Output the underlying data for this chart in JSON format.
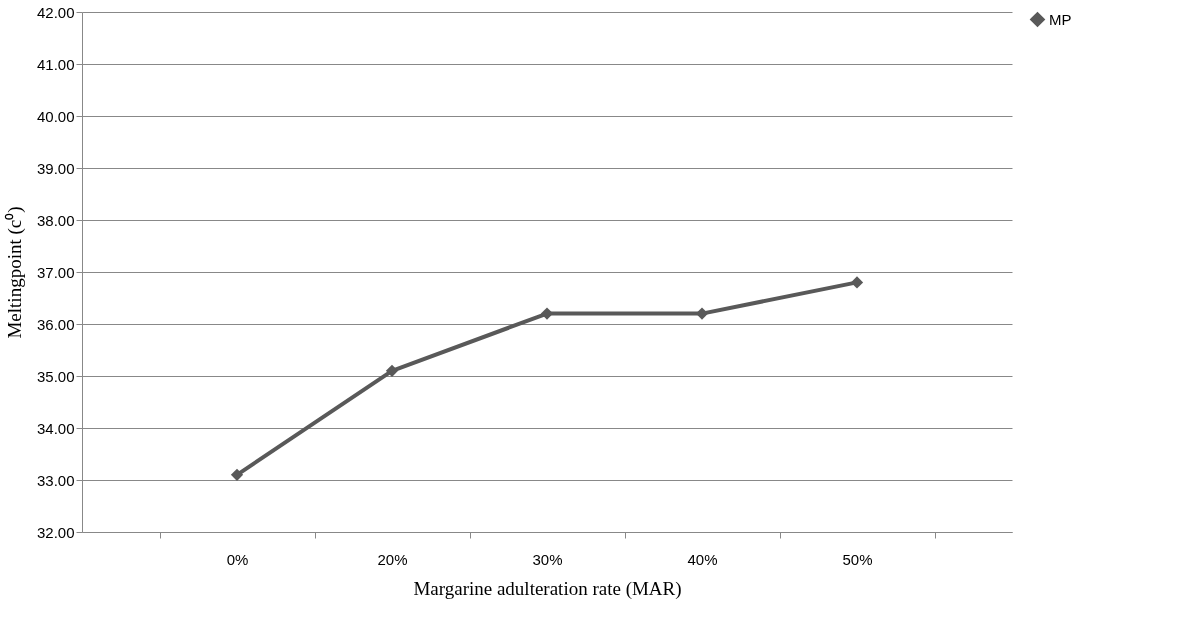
{
  "chart_data": {
    "type": "line",
    "xlabel": "Margarine adulteration rate  (MAR)",
    "ylabel": "Meltingpoint (c⁰)",
    "categories": [
      "0%",
      "20%",
      "30%",
      "40%",
      "50%"
    ],
    "series": [
      {
        "name": "MP",
        "color": "#595959",
        "values": [
          33.1,
          35.1,
          36.2,
          36.2,
          36.8
        ]
      }
    ],
    "ylim": [
      32,
      42
    ],
    "yticks": [
      {
        "value": 32,
        "label": "32.00"
      },
      {
        "value": 33,
        "label": "33.00"
      },
      {
        "value": 34,
        "label": "34.00"
      },
      {
        "value": 35,
        "label": "35.00"
      },
      {
        "value": 36,
        "label": "36.00"
      },
      {
        "value": 37,
        "label": "37.00"
      },
      {
        "value": 38,
        "label": "38.00"
      },
      {
        "value": 39,
        "label": "39.00"
      },
      {
        "value": 40,
        "label": "40.00"
      },
      {
        "value": 41,
        "label": "41.00"
      },
      {
        "value": 42,
        "label": "42.00"
      }
    ],
    "grid": "y",
    "legend": "right",
    "marker": "diamond",
    "line_style": "solid"
  }
}
